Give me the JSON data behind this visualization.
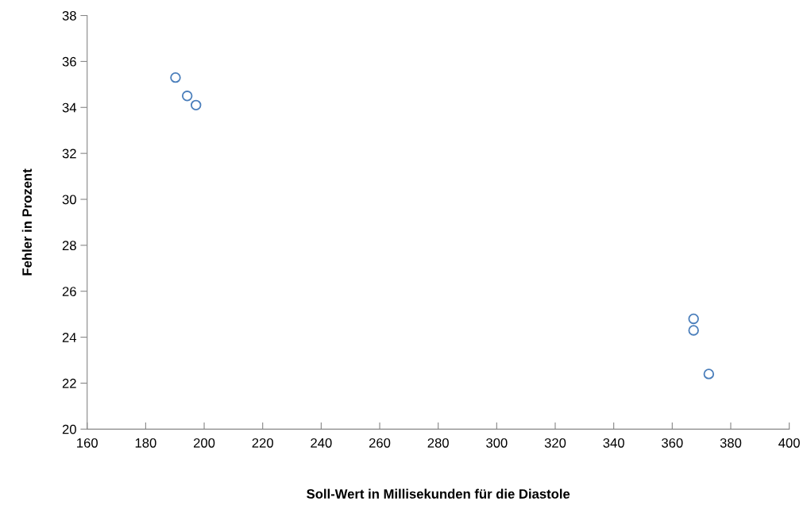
{
  "chart_data": {
    "type": "scatter",
    "xlabel": "Soll-Wert in Millisekunden für die Diastole",
    "ylabel": "Fehler in Prozent",
    "series": [
      {
        "color": "#4a7ebb",
        "x": [
          190.2,
          194.2,
          197.2,
          367.3,
          367.3,
          372.5
        ],
        "values": [
          35.3,
          34.5,
          34.1,
          24.8,
          24.3,
          22.4
        ]
      }
    ],
    "xlim": [
      160,
      400
    ],
    "xticks": [
      160,
      180,
      200,
      220,
      240,
      260,
      280,
      300,
      320,
      340,
      360,
      380,
      400
    ],
    "ylim": [
      20,
      38
    ],
    "yticks": [
      20,
      22,
      24,
      26,
      28,
      30,
      32,
      34,
      36,
      38
    ],
    "grid": false,
    "legend": false,
    "marker": "circle"
  }
}
